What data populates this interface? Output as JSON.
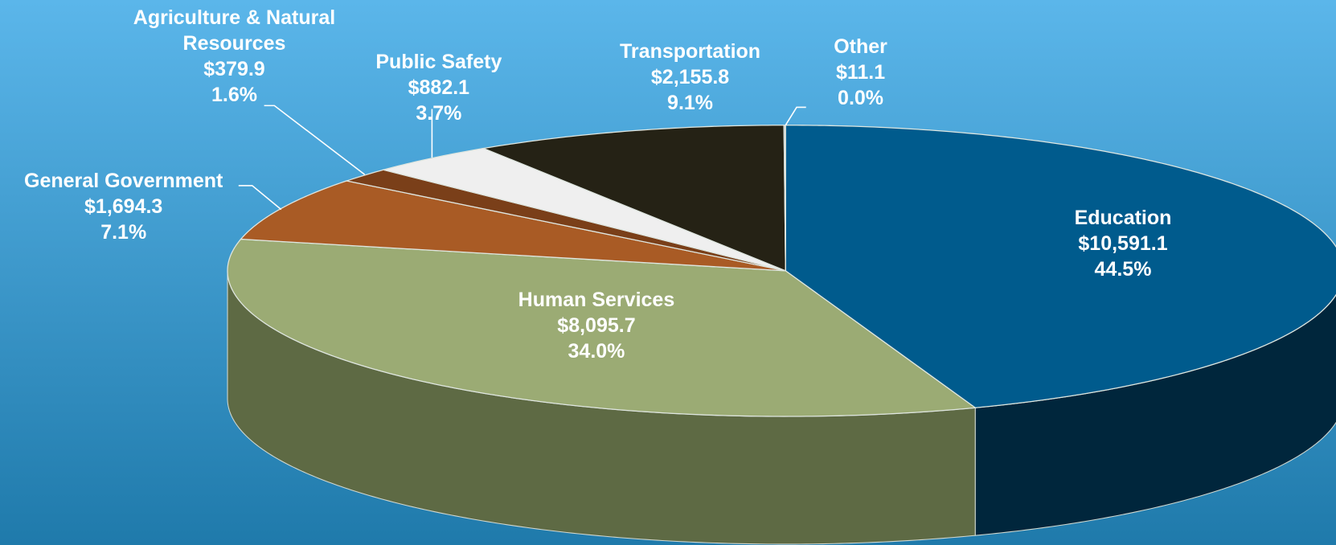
{
  "chart_data": {
    "type": "pie",
    "categories": [
      "Education",
      "Human Services",
      "General Government",
      "Agriculture & Natural Resources",
      "Public Safety",
      "Transportation",
      "Other"
    ],
    "values": [
      10591.1,
      8095.7,
      1694.3,
      379.9,
      882.1,
      2155.8,
      11.1
    ],
    "value_labels": [
      "$10,591.1",
      "$8,095.7",
      "$1,694.3",
      "$379.9",
      "$882.1",
      "$2,155.8",
      "$11.1"
    ],
    "percent_labels": [
      "44.5%",
      "34.0%",
      "7.1%",
      "1.6%",
      "3.7%",
      "9.1%",
      "0.0%"
    ],
    "colors": [
      "#005b8d",
      "#9bab74",
      "#a95b25",
      "#7a3f19",
      "#efefef",
      "#252215",
      "#c8c8c8"
    ],
    "side_colors": [
      "#00263c",
      "#5e6a44",
      "#6a3512",
      "#4d260c",
      "#9a9a9a",
      "#141209",
      "#888888"
    ]
  }
}
